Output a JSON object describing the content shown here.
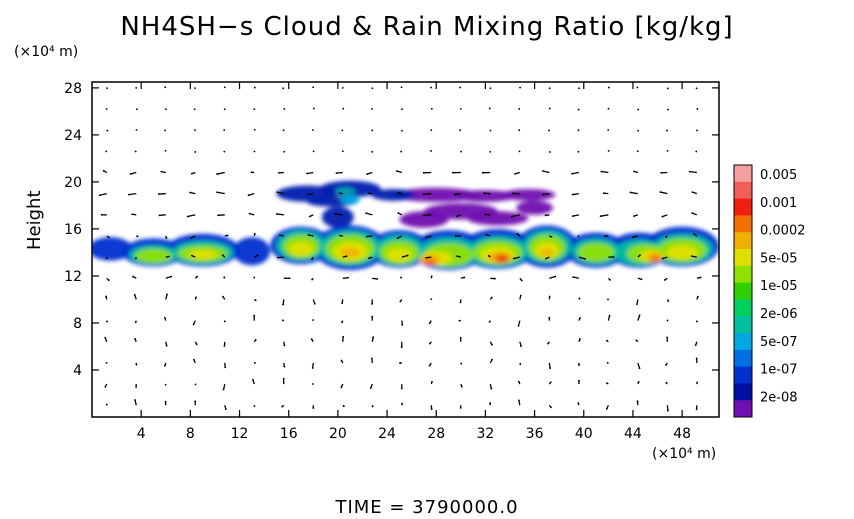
{
  "chart_data": {
    "type": "heatmap",
    "title": "NH4SH−s Cloud & Rain Mixing Ratio [kg/kg]",
    "ylabel": "Height",
    "y_unit": "(×10⁴ m)",
    "x_unit": "(×10⁴ m)",
    "time_label": "TIME  =  3790000.0",
    "x_ticks": [
      "4",
      "8",
      "12",
      "16",
      "20",
      "24",
      "28",
      "32",
      "36",
      "40",
      "44",
      "48"
    ],
    "x_tick_values": [
      4,
      8,
      12,
      16,
      20,
      24,
      28,
      32,
      36,
      40,
      44,
      48
    ],
    "y_ticks": [
      "4",
      "8",
      "12",
      "16",
      "20",
      "24",
      "28"
    ],
    "y_tick_values": [
      4,
      8,
      12,
      16,
      20,
      24,
      28
    ],
    "xlim": [
      0,
      51
    ],
    "ylim": [
      0,
      28.5
    ],
    "colorbar": {
      "labels": [
        "0.005",
        "0.001",
        "0.0002",
        "5e-05",
        "1e-05",
        "2e-06",
        "5e-07",
        "1e-07",
        "2e-08"
      ],
      "colors": [
        "#f4a0a0",
        "#f06058",
        "#f02010",
        "#f07000",
        "#f0b000",
        "#e0e000",
        "#90e000",
        "#30d000",
        "#00d060",
        "#00c0a0",
        "#00a8e0",
        "#0070e0",
        "#0030d0",
        "#0010a0",
        "#7010b0"
      ]
    },
    "cloud_regions": [
      {
        "x": [
          0,
          51
        ],
        "y": [
          12.5,
          16.2
        ],
        "level": "1e-07 to 5e-05"
      },
      {
        "x": [
          15,
          26
        ],
        "y": [
          18,
          20
        ],
        "level": "2e-08 to 1e-07"
      },
      {
        "x": [
          26,
          39
        ],
        "y": [
          16,
          19.5
        ],
        "level": "2e-08"
      },
      {
        "x": [
          26,
          29
        ],
        "y": [
          12.8,
          14
        ],
        "level": "0.0002"
      },
      {
        "x": [
          32,
          35
        ],
        "y": [
          12.8,
          14.2
        ],
        "level": "0.001"
      },
      {
        "x": [
          44,
          47
        ],
        "y": [
          13,
          14.2
        ],
        "level": "0.0002"
      }
    ]
  }
}
